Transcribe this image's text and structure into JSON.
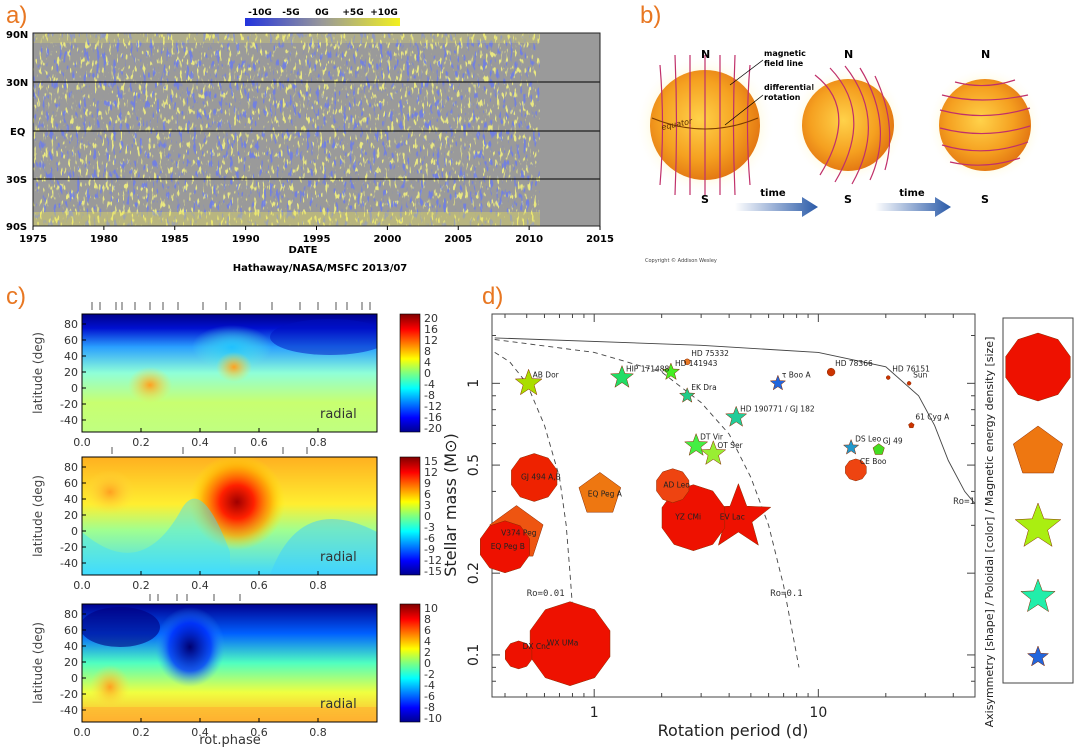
{
  "panel_labels": [
    "a)",
    "b)",
    "c)",
    "d)"
  ],
  "panel_a": {
    "colorbar_ticks": [
      "-10G",
      "-5G",
      "0G",
      "+5G",
      "+10G"
    ],
    "y_ticks": [
      "90N",
      "30N",
      "EQ",
      "30S",
      "90S"
    ],
    "x_ticks": [
      "1975",
      "1980",
      "1985",
      "1990",
      "1995",
      "2000",
      "2005",
      "2010",
      "2015"
    ],
    "xlabel": "DATE",
    "credit": "Hathaway/NASA/MSFC 2013/07"
  },
  "panel_b": {
    "labels": {
      "north": "N",
      "south": "S",
      "field_line_1": "magnetic",
      "field_line_2": "field line",
      "diff_1": "differential",
      "diff_2": "rotation",
      "equator": "equator",
      "time": "time"
    },
    "copyright": "Copyright © Addison Wesley"
  },
  "panel_c": {
    "maps": [
      {
        "ylabel": "latitude (deg)",
        "yticks": [
          "80",
          "60",
          "40",
          "20",
          "0",
          "-20",
          "-40"
        ],
        "xticks": [
          "0.0",
          "0.2",
          "0.4",
          "0.6",
          "0.8"
        ],
        "tag": "radial",
        "cbar_ticks": [
          "20",
          "16",
          "12",
          "8",
          "4",
          "0",
          "-4",
          "-8",
          "-12",
          "-16",
          "-20"
        ]
      },
      {
        "ylabel": "latitude (deg)",
        "yticks": [
          "80",
          "60",
          "40",
          "20",
          "0",
          "-20",
          "-40"
        ],
        "xticks": [
          "0.0",
          "0.2",
          "0.4",
          "0.6",
          "0.8"
        ],
        "tag": "radial",
        "cbar_ticks": [
          "15",
          "12",
          "9",
          "6",
          "3",
          "0",
          "-3",
          "-6",
          "-9",
          "-12",
          "-15"
        ]
      },
      {
        "ylabel": "latitude (deg)",
        "yticks": [
          "80",
          "60",
          "40",
          "20",
          "0",
          "-20",
          "-40"
        ],
        "xticks": [
          "0.0",
          "0.2",
          "0.4",
          "0.6",
          "0.8"
        ],
        "tag": "radial",
        "cbar_ticks": [
          "10",
          "8",
          "6",
          "4",
          "2",
          "0",
          "-2",
          "-4",
          "-6",
          "-8",
          "-10"
        ]
      }
    ],
    "xlabel": "rot.phase"
  },
  "chart_data": {
    "type": "scatter",
    "xlabel": "Rotation period (d)",
    "ylabel": "Stellar mass (M⊙)",
    "xscale": "log",
    "yscale": "log",
    "xlim": [
      0.35,
      50
    ],
    "ylim": [
      0.07,
      1.8
    ],
    "x_ticks": [
      "1",
      "10"
    ],
    "y_ticks": [
      "1",
      "0.5",
      "0.2",
      "0.1"
    ],
    "curve_labels": [
      "Ro=0.01",
      "Ro=0.1",
      "Ro=1"
    ],
    "legend_title": "Axisymmetry [shape] / Poloidal [color] / Magnetic energy density [size]",
    "stars": [
      {
        "name": "HD 75332",
        "x": 2.6,
        "y": 1.2,
        "shape": "decagon",
        "color": "#e87722",
        "size": 3
      },
      {
        "name": "HD 78366",
        "x": 11.4,
        "y": 1.1,
        "shape": "decagon",
        "color": "#cc3300",
        "size": 4
      },
      {
        "name": "HD 76151",
        "x": 20.5,
        "y": 1.05,
        "shape": "decagon",
        "color": "#cc3300",
        "size": 2
      },
      {
        "name": "Sun",
        "x": 25.4,
        "y": 1.0,
        "shape": "decagon",
        "color": "#cc3300",
        "size": 2
      },
      {
        "name": "61 Cyg A",
        "x": 26.0,
        "y": 0.7,
        "shape": "pentagon",
        "color": "#cc3300",
        "size": 3
      },
      {
        "name": "HIP 171488",
        "x": 1.33,
        "y": 1.05,
        "shape": "star",
        "color": "#22dd66",
        "size": 12
      },
      {
        "name": "HD 141943",
        "x": 2.2,
        "y": 1.1,
        "shape": "star",
        "color": "#44ee22",
        "size": 9
      },
      {
        "name": "EK Dra",
        "x": 2.6,
        "y": 0.9,
        "shape": "star",
        "color": "#22cc88",
        "size": 8
      },
      {
        "name": "AB Dor",
        "x": 0.51,
        "y": 1.0,
        "shape": "star",
        "color": "#aadd00",
        "size": 14
      },
      {
        "name": "τ Boo A",
        "x": 6.6,
        "y": 1.0,
        "shape": "star",
        "color": "#2266dd",
        "size": 8
      },
      {
        "name": "HD 190771 / GJ 182",
        "x": 4.3,
        "y": 0.75,
        "shape": "star",
        "color": "#22cc99",
        "size": 11
      },
      {
        "name": "DT Vir",
        "x": 2.85,
        "y": 0.59,
        "shape": "star",
        "color": "#44ee44",
        "size": 12
      },
      {
        "name": "OT Ser",
        "x": 3.4,
        "y": 0.55,
        "shape": "star",
        "color": "#99ee33",
        "size": 13
      },
      {
        "name": "DS Leo",
        "x": 14.0,
        "y": 0.58,
        "shape": "star",
        "color": "#2299cc",
        "size": 8
      },
      {
        "name": "GJ 49",
        "x": 18.6,
        "y": 0.57,
        "shape": "pentagon",
        "color": "#44dd22",
        "size": 6
      },
      {
        "name": "CE Boo",
        "x": 14.7,
        "y": 0.48,
        "shape": "decagon",
        "color": "#ee4411",
        "size": 11
      },
      {
        "name": "GJ 494 A,B",
        "x": 0.54,
        "y": 0.45,
        "shape": "decagon",
        "color": "#ee2200",
        "size": 24
      },
      {
        "name": "EQ Peg A",
        "x": 1.06,
        "y": 0.39,
        "shape": "pentagon",
        "color": "#ee7711",
        "size": 22
      },
      {
        "name": "AD Leo",
        "x": 2.24,
        "y": 0.42,
        "shape": "decagon",
        "color": "#ee4411",
        "size": 17
      },
      {
        "name": "EV Lac",
        "x": 4.4,
        "y": 0.32,
        "shape": "star",
        "color": "#ee1100",
        "size": 34
      },
      {
        "name": "YZ CMi",
        "x": 2.77,
        "y": 0.32,
        "shape": "decagon",
        "color": "#ee1100",
        "size": 33
      },
      {
        "name": "V374 Peg",
        "x": 0.45,
        "y": 0.28,
        "shape": "pentagon",
        "color": "#ee5511",
        "size": 28
      },
      {
        "name": "EQ Peg B",
        "x": 0.4,
        "y": 0.25,
        "shape": "decagon",
        "color": "#ee1100",
        "size": 26
      },
      {
        "name": "WX UMa",
        "x": 0.78,
        "y": 0.11,
        "shape": "decagon",
        "color": "#ee1100",
        "size": 42
      },
      {
        "name": "DX Cnc",
        "x": 0.46,
        "y": 0.1,
        "shape": "decagon",
        "color": "#ee1100",
        "size": 14
      }
    ],
    "legend_items": [
      {
        "shape": "decagon",
        "color": "#ee1100",
        "size": 34
      },
      {
        "shape": "pentagon",
        "color": "#ee7711",
        "size": 26
      },
      {
        "shape": "star",
        "color": "#aaee11",
        "size": 24
      },
      {
        "shape": "star",
        "color": "#22eeaa",
        "size": 18
      },
      {
        "shape": "star",
        "color": "#2266dd",
        "size": 11
      }
    ]
  }
}
